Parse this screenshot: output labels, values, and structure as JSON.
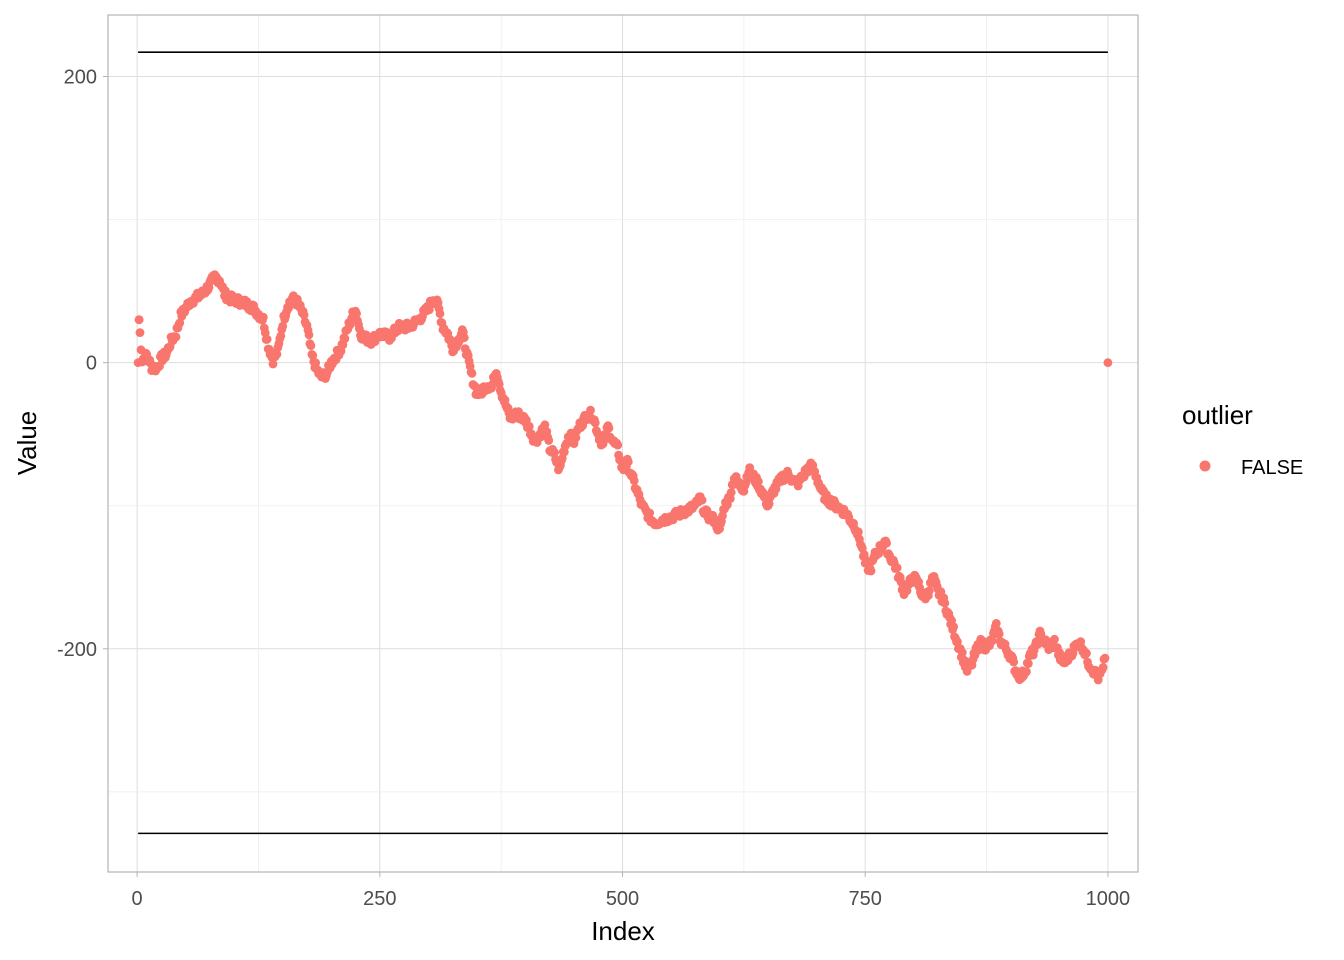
{
  "chart_data": {
    "type": "scatter",
    "xlabel": "Index",
    "ylabel": "Value",
    "xlim": [
      -30,
      1031
    ],
    "ylim": [
      -356,
      243
    ],
    "x_ticks": [
      0,
      250,
      500,
      750,
      1000
    ],
    "x_tick_labels": [
      "0",
      "250",
      "500",
      "750",
      "1000"
    ],
    "y_ticks": [
      -200,
      0,
      200
    ],
    "y_tick_labels": [
      "-200",
      "0",
      "200"
    ],
    "grid": true,
    "theme": "light",
    "legend": {
      "title": "outlier",
      "placement": "right",
      "entries": [
        {
          "label": "FALSE",
          "color": "#F8766D"
        }
      ]
    },
    "reference_lines": [
      {
        "y": 217,
        "x_start": 1,
        "x_end": 1000,
        "color": "#000000"
      },
      {
        "y": -329,
        "x_start": 1,
        "x_end": 1000,
        "color": "#000000"
      }
    ],
    "series": [
      {
        "color": "#F8766D",
        "anchors": [
          [
            1,
            0
          ],
          [
            2,
            30
          ],
          [
            5,
            2
          ],
          [
            10,
            5
          ],
          [
            15,
            -3
          ],
          [
            20,
            -4
          ],
          [
            25,
            3
          ],
          [
            30,
            6
          ],
          [
            35,
            15
          ],
          [
            40,
            20
          ],
          [
            45,
            33
          ],
          [
            50,
            38
          ],
          [
            55,
            43
          ],
          [
            60,
            45
          ],
          [
            65,
            47
          ],
          [
            70,
            50
          ],
          [
            75,
            55
          ],
          [
            80,
            60
          ],
          [
            85,
            58
          ],
          [
            90,
            48
          ],
          [
            95,
            45
          ],
          [
            100,
            44
          ],
          [
            110,
            42
          ],
          [
            120,
            38
          ],
          [
            130,
            30
          ],
          [
            135,
            12
          ],
          [
            140,
            2
          ],
          [
            145,
            8
          ],
          [
            150,
            28
          ],
          [
            155,
            40
          ],
          [
            160,
            45
          ],
          [
            165,
            42
          ],
          [
            170,
            35
          ],
          [
            175,
            25
          ],
          [
            180,
            5
          ],
          [
            185,
            -5
          ],
          [
            190,
            -10
          ],
          [
            195,
            -8
          ],
          [
            200,
            0
          ],
          [
            205,
            5
          ],
          [
            210,
            10
          ],
          [
            215,
            20
          ],
          [
            220,
            30
          ],
          [
            225,
            38
          ],
          [
            230,
            20
          ],
          [
            240,
            15
          ],
          [
            250,
            20
          ],
          [
            260,
            18
          ],
          [
            270,
            25
          ],
          [
            280,
            25
          ],
          [
            290,
            30
          ],
          [
            300,
            38
          ],
          [
            305,
            45
          ],
          [
            310,
            40
          ],
          [
            315,
            25
          ],
          [
            320,
            20
          ],
          [
            325,
            10
          ],
          [
            330,
            15
          ],
          [
            335,
            22
          ],
          [
            340,
            5
          ],
          [
            345,
            -10
          ],
          [
            350,
            -22
          ],
          [
            355,
            -20
          ],
          [
            360,
            -15
          ],
          [
            365,
            -18
          ],
          [
            370,
            -5
          ],
          [
            375,
            -20
          ],
          [
            380,
            -30
          ],
          [
            385,
            -40
          ],
          [
            390,
            -35
          ],
          [
            400,
            -40
          ],
          [
            410,
            -55
          ],
          [
            420,
            -45
          ],
          [
            425,
            -60
          ],
          [
            430,
            -65
          ],
          [
            435,
            -75
          ],
          [
            440,
            -60
          ],
          [
            445,
            -50
          ],
          [
            450,
            -55
          ],
          [
            455,
            -45
          ],
          [
            460,
            -40
          ],
          [
            465,
            -35
          ],
          [
            470,
            -38
          ],
          [
            475,
            -50
          ],
          [
            480,
            -58
          ],
          [
            485,
            -45
          ],
          [
            490,
            -55
          ],
          [
            495,
            -60
          ],
          [
            500,
            -75
          ],
          [
            505,
            -70
          ],
          [
            510,
            -80
          ],
          [
            515,
            -90
          ],
          [
            520,
            -100
          ],
          [
            525,
            -105
          ],
          [
            530,
            -110
          ],
          [
            535,
            -112
          ],
          [
            540,
            -110
          ],
          [
            550,
            -108
          ],
          [
            560,
            -105
          ],
          [
            570,
            -102
          ],
          [
            575,
            -100
          ],
          [
            580,
            -95
          ],
          [
            585,
            -105
          ],
          [
            590,
            -108
          ],
          [
            595,
            -110
          ],
          [
            600,
            -118
          ],
          [
            605,
            -100
          ],
          [
            610,
            -95
          ],
          [
            615,
            -80
          ],
          [
            620,
            -85
          ],
          [
            625,
            -88
          ],
          [
            630,
            -75
          ],
          [
            640,
            -85
          ],
          [
            645,
            -92
          ],
          [
            650,
            -100
          ],
          [
            655,
            -90
          ],
          [
            660,
            -85
          ],
          [
            665,
            -80
          ],
          [
            670,
            -78
          ],
          [
            680,
            -85
          ],
          [
            690,
            -75
          ],
          [
            695,
            -72
          ],
          [
            700,
            -80
          ],
          [
            705,
            -90
          ],
          [
            710,
            -95
          ],
          [
            720,
            -100
          ],
          [
            730,
            -105
          ],
          [
            735,
            -110
          ],
          [
            740,
            -115
          ],
          [
            745,
            -125
          ],
          [
            750,
            -140
          ],
          [
            755,
            -145
          ],
          [
            760,
            -135
          ],
          [
            765,
            -130
          ],
          [
            770,
            -125
          ],
          [
            775,
            -135
          ],
          [
            780,
            -140
          ],
          [
            785,
            -150
          ],
          [
            790,
            -160
          ],
          [
            795,
            -155
          ],
          [
            800,
            -150
          ],
          [
            805,
            -155
          ],
          [
            810,
            -165
          ],
          [
            815,
            -160
          ],
          [
            820,
            -150
          ],
          [
            825,
            -160
          ],
          [
            830,
            -165
          ],
          [
            835,
            -175
          ],
          [
            840,
            -185
          ],
          [
            845,
            -195
          ],
          [
            850,
            -205
          ],
          [
            855,
            -215
          ],
          [
            860,
            -210
          ],
          [
            865,
            -200
          ],
          [
            870,
            -195
          ],
          [
            875,
            -200
          ],
          [
            880,
            -195
          ],
          [
            885,
            -185
          ],
          [
            890,
            -195
          ],
          [
            895,
            -200
          ],
          [
            900,
            -205
          ],
          [
            905,
            -215
          ],
          [
            910,
            -220
          ],
          [
            915,
            -215
          ],
          [
            920,
            -205
          ],
          [
            925,
            -200
          ],
          [
            930,
            -190
          ],
          [
            935,
            -195
          ],
          [
            940,
            -200
          ],
          [
            945,
            -195
          ],
          [
            950,
            -205
          ],
          [
            955,
            -210
          ],
          [
            960,
            -205
          ],
          [
            965,
            -200
          ],
          [
            970,
            -195
          ],
          [
            975,
            -200
          ],
          [
            980,
            -210
          ],
          [
            985,
            -215
          ],
          [
            990,
            -220
          ],
          [
            995,
            -215
          ],
          [
            998,
            -200
          ],
          [
            1000,
            0
          ]
        ]
      }
    ]
  }
}
